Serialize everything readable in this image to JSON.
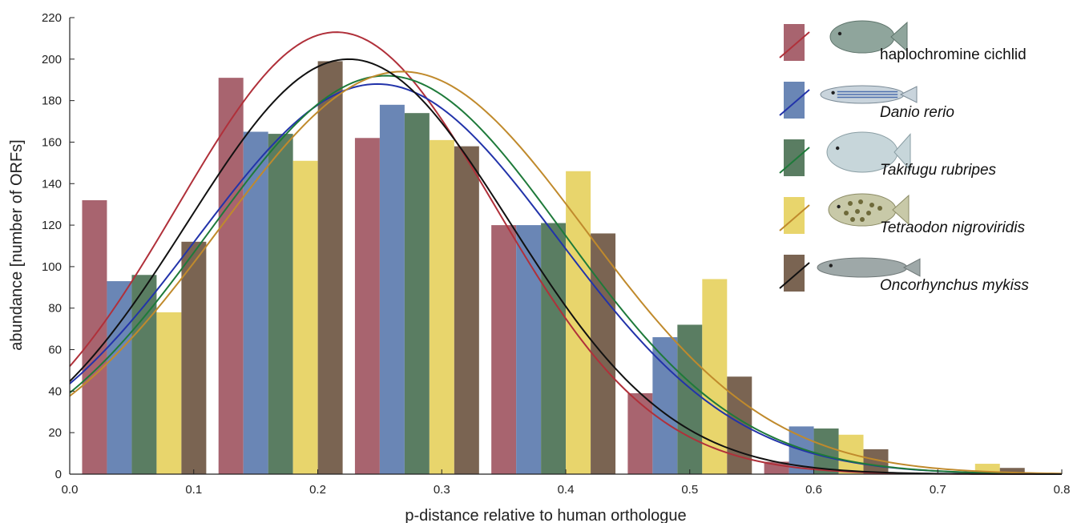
{
  "chart_data": {
    "type": "bar",
    "xlabel": "p-distance relative to human orthologue",
    "ylabel": "abundance [number of ORFs]",
    "xlim": [
      0.0,
      0.8
    ],
    "ylim": [
      0,
      220
    ],
    "x_ticks": [
      "0.0",
      "0.1",
      "0.2",
      "0.3",
      "0.4",
      "0.5",
      "0.6",
      "0.7",
      "0.8"
    ],
    "y_ticks": [
      "0",
      "20",
      "40",
      "60",
      "80",
      "100",
      "120",
      "140",
      "160",
      "180",
      "200",
      "220"
    ],
    "grid": false,
    "legend_position": "top-right",
    "bin_starts": [
      0.0,
      0.11,
      0.22,
      0.33,
      0.44,
      0.55,
      0.66
    ],
    "bin_width": 0.11,
    "series": [
      {
        "name": "haplochromine cichlid",
        "color": "#a8646f",
        "curve_color": "#b0303a",
        "values": [
          132,
          191,
          162,
          120,
          39,
          6,
          0
        ],
        "curve": {
          "amplitude": 213,
          "mean": 0.215,
          "sd": 0.128
        },
        "fish_icon": "cichlid-fish-icon",
        "italic": false
      },
      {
        "name": "Danio rerio",
        "color": "#6a86b5",
        "curve_color": "#2233aa",
        "values": [
          93,
          165,
          178,
          120,
          66,
          23,
          0
        ],
        "curve": {
          "amplitude": 188,
          "mean": 0.248,
          "sd": 0.145
        },
        "fish_icon": "zebrafish-icon",
        "italic": true
      },
      {
        "name": "Takifugu rubripes",
        "color": "#5a7d62",
        "curve_color": "#1e7a3a",
        "values": [
          96,
          164,
          174,
          121,
          72,
          22,
          0
        ],
        "curve": {
          "amplitude": 192,
          "mean": 0.255,
          "sd": 0.143
        },
        "fish_icon": "fugu-icon",
        "italic": true
      },
      {
        "name": "Tetraodon nigroviridis",
        "color": "#e8d56c",
        "curve_color": "#c08a2c",
        "values": [
          78,
          151,
          161,
          146,
          94,
          19,
          5
        ],
        "curve": {
          "amplitude": 194,
          "mean": 0.268,
          "sd": 0.148
        },
        "fish_icon": "tetraodon-icon",
        "italic": true
      },
      {
        "name": "Oncorhynchus mykiss",
        "color": "#7a6452",
        "curve_color": "#111111",
        "values": [
          112,
          199,
          158,
          116,
          47,
          12,
          3
        ],
        "curve": {
          "amplitude": 200,
          "mean": 0.225,
          "sd": 0.13
        },
        "fish_icon": "trout-icon",
        "italic": true
      }
    ]
  }
}
